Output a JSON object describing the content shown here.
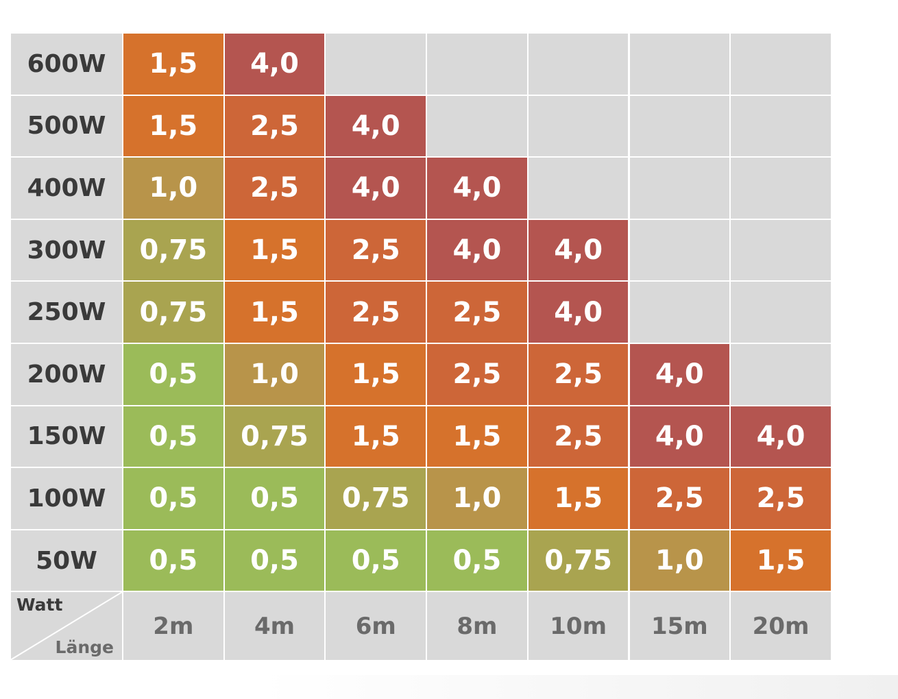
{
  "chart_data": {
    "type": "table",
    "corner": {
      "row_header": "Watt",
      "col_header": "Länge"
    },
    "columns": [
      "2m",
      "4m",
      "6m",
      "8m",
      "10m",
      "15m",
      "20m"
    ],
    "rows": [
      {
        "watt": "600W",
        "values": [
          "1,5",
          "4,0",
          "",
          "",
          "",
          "",
          ""
        ]
      },
      {
        "watt": "500W",
        "values": [
          "1,5",
          "2,5",
          "4,0",
          "",
          "",
          "",
          ""
        ]
      },
      {
        "watt": "400W",
        "values": [
          "1,0",
          "2,5",
          "4,0",
          "4,0",
          "",
          "",
          ""
        ]
      },
      {
        "watt": "300W",
        "values": [
          "0,75",
          "1,5",
          "2,5",
          "4,0",
          "4,0",
          "",
          ""
        ]
      },
      {
        "watt": "250W",
        "values": [
          "0,75",
          "1,5",
          "2,5",
          "2,5",
          "4,0",
          "",
          ""
        ]
      },
      {
        "watt": "200W",
        "values": [
          "0,5",
          "1,0",
          "1,5",
          "2,5",
          "2,5",
          "4,0",
          ""
        ]
      },
      {
        "watt": "150W",
        "values": [
          "0,5",
          "0,75",
          "1,5",
          "1,5",
          "2,5",
          "4,0",
          "4,0"
        ]
      },
      {
        "watt": "100W",
        "values": [
          "0,5",
          "0,5",
          "0,75",
          "1,0",
          "1,5",
          "2,5",
          "2,5"
        ]
      },
      {
        "watt": "50W",
        "values": [
          "0,5",
          "0,5",
          "0,5",
          "0,5",
          "0,75",
          "1,0",
          "1,5"
        ]
      }
    ],
    "value_colors": {
      "0,5": "#9bbb59",
      "0,75": "#a9a450",
      "1,0": "#b8944a",
      "1,5": "#d6722c",
      "2,5": "#cd6638",
      "4,0": "#b45550"
    },
    "empty_color": "#d9d9d9"
  }
}
